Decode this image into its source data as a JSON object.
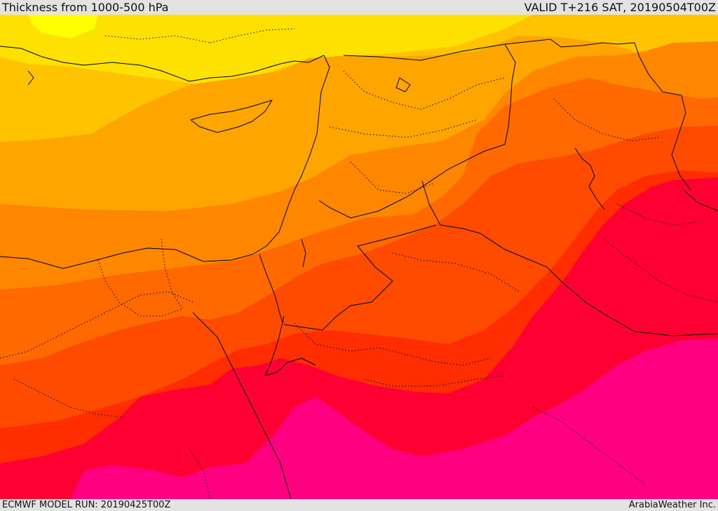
{
  "header": {
    "title": "Thickness from 1000-500 hPa",
    "valid": "VALID T+216 SAT, 20190504T00Z"
  },
  "footer": {
    "model_run": "ECMWF MODEL RUN: 20190425T00Z",
    "credit": "ArabiaWeather Inc."
  },
  "palette": {
    "yellow_bright": "#ffff00",
    "yellow": "#ffe100",
    "gold": "#ffc300",
    "amber": "#ffa500",
    "orange": "#ff8700",
    "orange_red": "#ff6900",
    "red_orange": "#ff4b00",
    "red": "#ff2d00",
    "crimson": "#ff0033",
    "magenta": "#ff0080",
    "border_color": "#000000"
  },
  "map": {
    "field": "thickness",
    "levels": "1000-500 hPa",
    "region": "Eastern Mediterranean and Middle East",
    "icons": [
      "country-border",
      "province-border"
    ]
  }
}
